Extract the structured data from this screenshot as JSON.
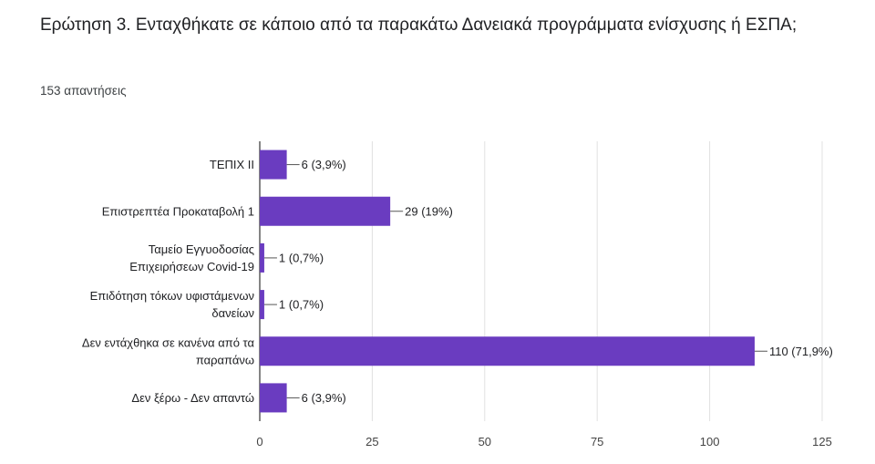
{
  "question": {
    "title": "Ερώτηση 3. Ενταχθήκατε σε κάποιο από τα παρακάτω Δανειακά προγράμματα ενίσχυσης ή ΕΣΠΑ;",
    "responses": "153 απαντήσεις"
  },
  "colors": {
    "bar": "#6a3cc0",
    "grid": "#e0e0e0",
    "axis": "#333333"
  },
  "chart_data": {
    "type": "bar",
    "orientation": "horizontal",
    "categories": [
      [
        "ΤΕΠΙΧ ΙΙ"
      ],
      [
        "Επιστρεπτέα Προκαταβολή 1"
      ],
      [
        "Ταμείο Εγγυοδοσίας",
        "Επιχειρήσεων Covid-19"
      ],
      [
        "Επιδότηση τόκων υφιστάμενων",
        "δανείων"
      ],
      [
        "Δεν εντάχθηκα σε κανένα από τα",
        "παραπάνω"
      ],
      [
        "Δεν ξέρω - Δεν απαντώ"
      ]
    ],
    "values": [
      6,
      29,
      1,
      1,
      110,
      6
    ],
    "data_labels": [
      "6 (3,9%)",
      "29 (19%)",
      "1 (0,7%)",
      "1 (0,7%)",
      "110 (71,9%)",
      "6 (3,9%)"
    ],
    "xlim": [
      0,
      125
    ],
    "xticks": [
      0,
      25,
      50,
      75,
      100,
      125
    ],
    "grid": true
  }
}
